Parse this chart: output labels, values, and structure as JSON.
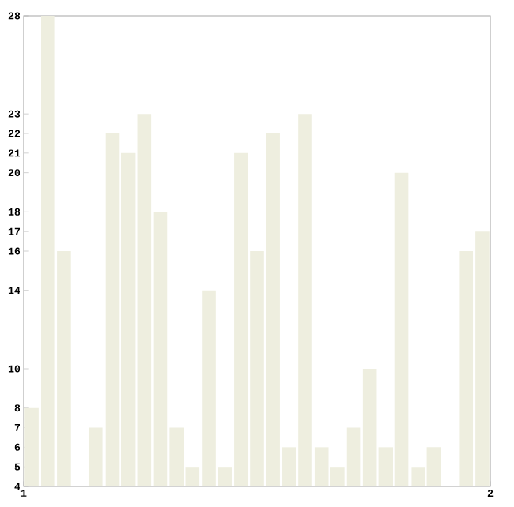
{
  "chart_data": {
    "type": "bar",
    "x": [
      1.017,
      1.052,
      1.086,
      1.121,
      1.155,
      1.19,
      1.224,
      1.259,
      1.293,
      1.328,
      1.362,
      1.397,
      1.431,
      1.466,
      1.5,
      1.534,
      1.569,
      1.603,
      1.638,
      1.672,
      1.707,
      1.741,
      1.776,
      1.81,
      1.845,
      1.879,
      1.914,
      1.948,
      1.983
    ],
    "values": [
      8,
      28,
      16,
      4,
      7,
      22,
      21,
      23,
      18,
      7,
      5,
      14,
      5,
      21,
      16,
      22,
      6,
      23,
      6,
      5,
      7,
      10,
      6,
      20,
      5,
      6,
      4,
      16,
      17
    ],
    "color": "#eeeedf",
    "xlim": [
      1,
      2
    ],
    "xticks": [
      1,
      2
    ],
    "ylim": [
      4,
      28
    ],
    "yticks": [
      4,
      5,
      6,
      7,
      8,
      10,
      14,
      16,
      17,
      18,
      20,
      21,
      22,
      23,
      28
    ],
    "grid": false
  }
}
